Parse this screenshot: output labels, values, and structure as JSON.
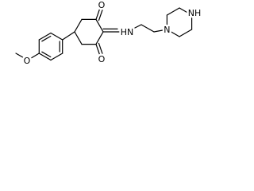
{
  "labels": [
    "O",
    "O",
    "O",
    "HN",
    "N",
    "NH"
  ]
}
